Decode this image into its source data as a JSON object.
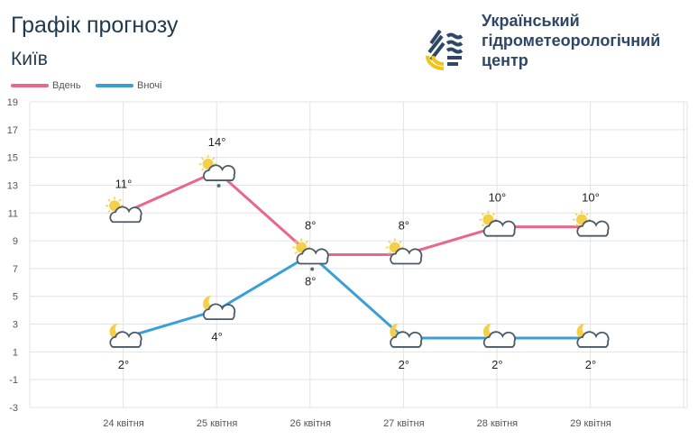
{
  "header": {
    "title": "Графік прогнозу",
    "city": "Київ",
    "org": [
      "Український",
      "гідрометеорологічний",
      "центр"
    ]
  },
  "chart_data": {
    "type": "line",
    "categories": [
      "24 квітня",
      "25 квітня",
      "26 квітня",
      "27 квітня",
      "28 квітня",
      "29 квітня"
    ],
    "ylim": [
      -3,
      19
    ],
    "yticks": [
      19,
      17,
      15,
      13,
      11,
      9,
      7,
      5,
      3,
      1,
      -1,
      -3
    ],
    "grid": true,
    "legend": "top-left",
    "series": [
      {
        "name": "Вдень",
        "color": "#e8678a",
        "values": [
          11,
          14,
          8,
          8,
          10,
          10
        ],
        "labels": [
          "11°",
          "14°",
          "8°",
          "8°",
          "10°",
          "10°"
        ],
        "icons": [
          "partly-cloudy-day",
          "partly-cloudy-rain",
          "partly-cloudy-rain",
          "partly-cloudy-day",
          "partly-cloudy-day",
          "partly-cloudy-day"
        ]
      },
      {
        "name": "Вночі",
        "color": "#3a9fd6",
        "values": [
          2,
          4,
          8,
          2,
          2,
          2
        ],
        "labels": [
          "2°",
          "4°",
          "8°",
          "2°",
          "2°",
          "2°"
        ],
        "icons": [
          "partly-cloudy-night",
          "partly-cloudy-night",
          "",
          "partly-cloudy-night",
          "partly-cloudy-night",
          "partly-cloudy-night"
        ]
      }
    ]
  }
}
